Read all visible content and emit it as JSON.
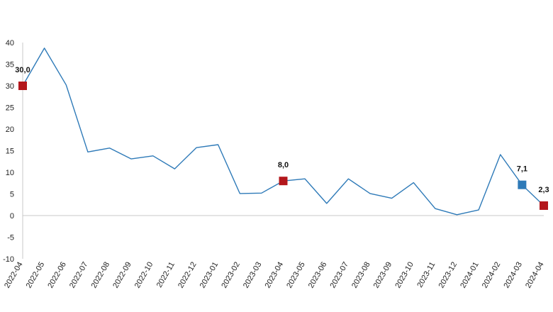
{
  "chart_data": {
    "type": "line",
    "title": "",
    "xlabel": "",
    "ylabel": "",
    "ylim": [
      -10,
      40
    ],
    "yticks": [
      -10,
      -5,
      0,
      5,
      10,
      15,
      20,
      25,
      30,
      35,
      40
    ],
    "ytick_labels": [
      "-10",
      "-5",
      "0",
      "5",
      "10",
      "15",
      "20",
      "25",
      "30",
      "35",
      "40"
    ],
    "grid": false,
    "legend": "none",
    "categories": [
      "2022-04",
      "2022-05",
      "2022-06",
      "2022-07",
      "2022-08",
      "2022-09",
      "2022-10",
      "2022-11",
      "2022-12",
      "2023-01",
      "2023-02",
      "2023-03",
      "2023-04",
      "2023-05",
      "2023-06",
      "2023-07",
      "2023-08",
      "2023-09",
      "2023-10",
      "2023-11",
      "2023-12",
      "2024-01",
      "2024-02",
      "2024-03",
      "2024-04"
    ],
    "series": [
      {
        "color": "#2e7ab8",
        "values": [
          30.0,
          38.7,
          30.2,
          14.7,
          15.6,
          13.1,
          13.8,
          10.8,
          15.7,
          16.4,
          5.1,
          5.2,
          8.0,
          8.5,
          2.8,
          8.5,
          5.1,
          4.0,
          7.6,
          1.6,
          0.2,
          1.3,
          14.1,
          7.1,
          2.3
        ]
      }
    ],
    "highlights": [
      {
        "category": "2022-04",
        "value": 30.0,
        "label": "30,0",
        "color": "#b3171c"
      },
      {
        "category": "2023-04",
        "value": 8.0,
        "label": "8,0",
        "color": "#b3171c"
      },
      {
        "category": "2024-03",
        "value": 7.1,
        "label": "7,1",
        "color": "#2e7ab8"
      },
      {
        "category": "2024-04",
        "value": 2.3,
        "label": "2,3",
        "color": "#b3171c"
      }
    ]
  }
}
